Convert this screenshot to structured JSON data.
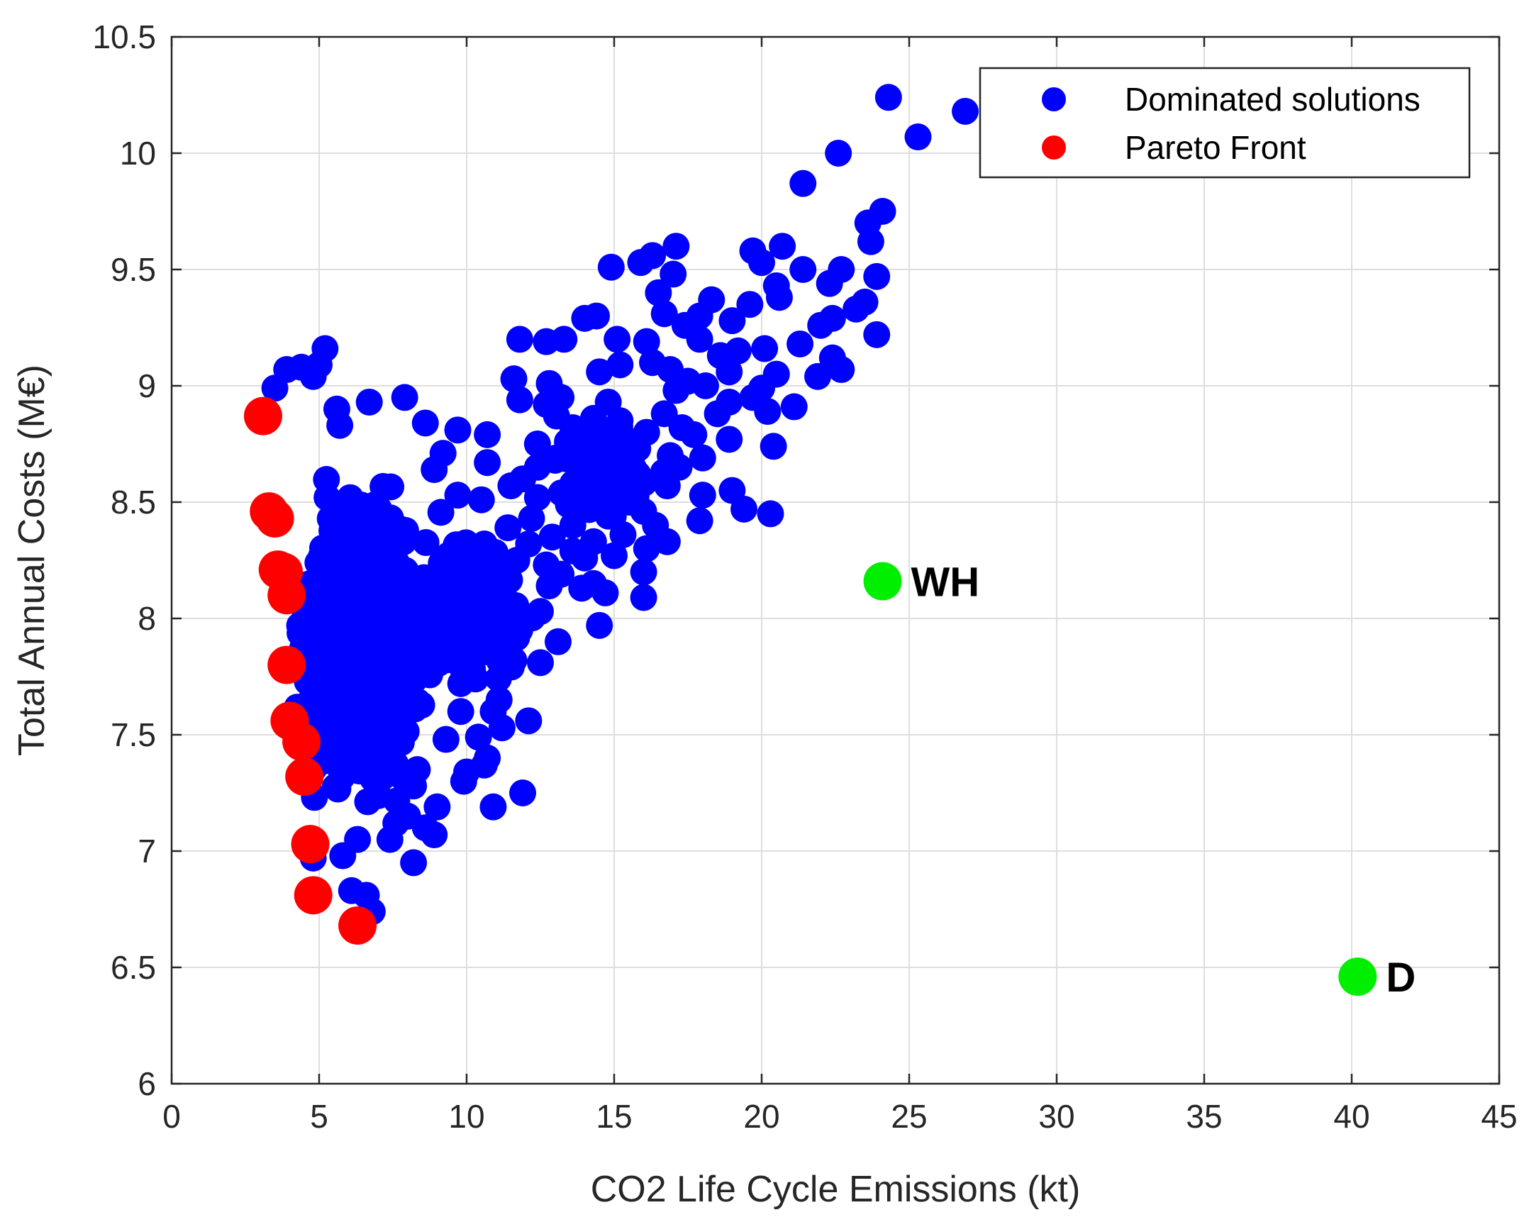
{
  "chart_data": {
    "type": "scatter",
    "xlabel": "CO2 Life Cycle Emissions (kt)",
    "ylabel": "Total Annual Costs (M€)",
    "xlim": [
      0,
      45
    ],
    "ylim": [
      6,
      10.5
    ],
    "xticks": [
      "0",
      "5",
      "10",
      "15",
      "20",
      "25",
      "30",
      "35",
      "40",
      "45"
    ],
    "yticks": [
      "6",
      "6.5",
      "7",
      "7.5",
      "8",
      "8.5",
      "9",
      "9.5",
      "10",
      "10.5"
    ],
    "grid": true,
    "legend_position": "top-right",
    "series": [
      {
        "name": "Dominated solutions",
        "color": "#0000ff",
        "points": [
          [
            24.3,
            10.24
          ],
          [
            26.9,
            10.18
          ],
          [
            25.3,
            10.07
          ],
          [
            22.6,
            10.0
          ],
          [
            21.4,
            9.87
          ],
          [
            24.1,
            9.75
          ],
          [
            23.6,
            9.7
          ],
          [
            23.7,
            9.62
          ],
          [
            17.1,
            9.6
          ],
          [
            20.7,
            9.6
          ],
          [
            19.7,
            9.58
          ],
          [
            16.3,
            9.56
          ],
          [
            15.9,
            9.53
          ],
          [
            20.0,
            9.53
          ],
          [
            14.9,
            9.51
          ],
          [
            21.4,
            9.5
          ],
          [
            22.7,
            9.5
          ],
          [
            17.0,
            9.48
          ],
          [
            23.9,
            9.47
          ],
          [
            22.3,
            9.44
          ],
          [
            20.5,
            9.43
          ],
          [
            16.5,
            9.4
          ],
          [
            20.6,
            9.38
          ],
          [
            18.3,
            9.37
          ],
          [
            23.5,
            9.36
          ],
          [
            19.6,
            9.35
          ],
          [
            23.2,
            9.33
          ],
          [
            16.7,
            9.31
          ],
          [
            14.4,
            9.3
          ],
          [
            17.9,
            9.3
          ],
          [
            14.0,
            9.29
          ],
          [
            22.4,
            9.29
          ],
          [
            19.0,
            9.28
          ],
          [
            17.4,
            9.26
          ],
          [
            22.0,
            9.26
          ],
          [
            23.9,
            9.22
          ],
          [
            11.8,
            9.2
          ],
          [
            13.3,
            9.2
          ],
          [
            15.1,
            9.2
          ],
          [
            17.9,
            9.2
          ],
          [
            12.7,
            9.19
          ],
          [
            16.1,
            9.19
          ],
          [
            21.3,
            9.18
          ],
          [
            5.2,
            9.16
          ],
          [
            20.1,
            9.16
          ],
          [
            19.2,
            9.15
          ],
          [
            18.6,
            9.13
          ],
          [
            22.4,
            9.12
          ],
          [
            16.3,
            9.1
          ],
          [
            5.0,
            9.09
          ],
          [
            15.2,
            9.09
          ],
          [
            4.4,
            9.08
          ],
          [
            3.9,
            9.07
          ],
          [
            16.9,
            9.07
          ],
          [
            22.7,
            9.07
          ],
          [
            14.5,
            9.06
          ],
          [
            18.9,
            9.06
          ],
          [
            20.5,
            9.05
          ],
          [
            21.9,
            9.04
          ],
          [
            4.8,
            9.04
          ],
          [
            11.6,
            9.03
          ],
          [
            17.5,
            9.02
          ],
          [
            12.8,
            9.01
          ],
          [
            18.1,
            9.0
          ],
          [
            3.5,
            8.99
          ],
          [
            20.0,
            8.99
          ],
          [
            17.1,
            8.98
          ],
          [
            13.2,
            8.95
          ],
          [
            19.7,
            8.95
          ],
          [
            7.9,
            8.95
          ],
          [
            11.8,
            8.94
          ],
          [
            6.7,
            8.93
          ],
          [
            14.8,
            8.93
          ],
          [
            18.9,
            8.93
          ],
          [
            12.7,
            8.92
          ],
          [
            21.1,
            8.91
          ],
          [
            5.6,
            8.9
          ],
          [
            20.2,
            8.89
          ],
          [
            18.5,
            8.88
          ],
          [
            16.7,
            8.88
          ],
          [
            14.3,
            8.86
          ],
          [
            15.2,
            8.85
          ],
          [
            8.6,
            8.84
          ],
          [
            5.7,
            8.83
          ],
          [
            13.6,
            8.82
          ],
          [
            17.3,
            8.82
          ],
          [
            9.7,
            8.81
          ],
          [
            16.1,
            8.8
          ],
          [
            10.7,
            8.79
          ],
          [
            17.7,
            8.79
          ],
          [
            18.9,
            8.77
          ],
          [
            14.9,
            8.77
          ],
          [
            12.4,
            8.75
          ],
          [
            20.4,
            8.74
          ],
          [
            15.8,
            8.73
          ],
          [
            13.9,
            8.72
          ],
          [
            9.2,
            8.71
          ],
          [
            16.9,
            8.7
          ],
          [
            18.0,
            8.69
          ],
          [
            13.0,
            8.68
          ],
          [
            10.7,
            8.67
          ],
          [
            15.3,
            8.66
          ],
          [
            12.4,
            8.65
          ],
          [
            17.2,
            8.65
          ],
          [
            8.9,
            8.64
          ],
          [
            14.4,
            8.63
          ],
          [
            15.8,
            8.62
          ],
          [
            11.9,
            8.6
          ],
          [
            13.6,
            8.58
          ],
          [
            16.8,
            8.57
          ],
          [
            11.5,
            8.57
          ],
          [
            19.0,
            8.55
          ],
          [
            18.0,
            8.53
          ],
          [
            9.7,
            8.53
          ],
          [
            12.4,
            8.52
          ],
          [
            10.5,
            8.51
          ],
          [
            14.3,
            8.5
          ],
          [
            15.5,
            8.5
          ],
          [
            19.4,
            8.47
          ],
          [
            16.0,
            8.46
          ],
          [
            20.3,
            8.45
          ],
          [
            14.8,
            8.44
          ],
          [
            12.2,
            8.43
          ],
          [
            17.9,
            8.42
          ],
          [
            16.4,
            8.4
          ],
          [
            13.6,
            8.4
          ],
          [
            11.4,
            8.39
          ],
          [
            15.3,
            8.36
          ],
          [
            12.9,
            8.35
          ],
          [
            16.8,
            8.33
          ],
          [
            14.3,
            8.33
          ],
          [
            10.6,
            8.32
          ],
          [
            12.1,
            8.32
          ],
          [
            16.1,
            8.3
          ],
          [
            13.6,
            8.29
          ],
          [
            15.0,
            8.27
          ],
          [
            14.0,
            8.26
          ],
          [
            11.7,
            8.25
          ],
          [
            12.7,
            8.23
          ],
          [
            16.0,
            8.2
          ],
          [
            13.2,
            8.19
          ],
          [
            10.4,
            8.18
          ],
          [
            14.3,
            8.15
          ],
          [
            11.0,
            8.15
          ],
          [
            12.8,
            8.14
          ],
          [
            13.9,
            8.13
          ],
          [
            14.7,
            8.11
          ],
          [
            10.4,
            8.1
          ],
          [
            16.0,
            8.09
          ],
          [
            11.4,
            8.07
          ],
          [
            12.5,
            8.03
          ],
          [
            9.9,
            8.02
          ],
          [
            14.5,
            7.97
          ],
          [
            11.8,
            7.95
          ],
          [
            13.1,
            7.9
          ],
          [
            10.5,
            7.88
          ],
          [
            11.4,
            7.85
          ],
          [
            11.6,
            7.82
          ],
          [
            12.5,
            7.81
          ],
          [
            10.2,
            7.78
          ],
          [
            10.3,
            7.74
          ],
          [
            9.8,
            7.72
          ],
          [
            11.1,
            7.65
          ],
          [
            10.9,
            7.6
          ],
          [
            9.8,
            7.6
          ],
          [
            12.1,
            7.56
          ],
          [
            11.2,
            7.53
          ],
          [
            10.4,
            7.49
          ],
          [
            9.3,
            7.48
          ],
          [
            10.7,
            7.4
          ],
          [
            10.6,
            7.37
          ],
          [
            10.0,
            7.34
          ],
          [
            9.9,
            7.3
          ],
          [
            11.9,
            7.25
          ],
          [
            8.2,
            7.28
          ],
          [
            10.9,
            7.19
          ],
          [
            9.0,
            7.19
          ],
          [
            8.0,
            7.15
          ],
          [
            8.6,
            7.1
          ],
          [
            8.9,
            7.07
          ],
          [
            7.4,
            7.05
          ],
          [
            8.2,
            6.95
          ],
          [
            5.8,
            6.98
          ],
          [
            4.8,
            6.97
          ],
          [
            6.1,
            6.83
          ],
          [
            6.6,
            6.81
          ],
          [
            6.8,
            6.74
          ],
          [
            6.3,
            7.05
          ],
          [
            7.6,
            7.12
          ]
        ],
        "clusters": [
          {
            "x": [
              3.8,
              9.2
            ],
            "y": [
              7.05,
              8.75
            ],
            "count": 540
          },
          {
            "x": [
              4.0,
              7.8
            ],
            "y": [
              7.1,
              8.5
            ],
            "count": 260
          },
          {
            "x": [
              4.2,
              6.8
            ],
            "y": [
              7.2,
              8.3
            ],
            "count": 160
          },
          {
            "x": [
              7.0,
              12.5
            ],
            "y": [
              7.6,
              8.5
            ],
            "count": 140
          },
          {
            "x": [
              12.0,
              17.5
            ],
            "y": [
              8.3,
              9.0
            ],
            "count": 60
          }
        ]
      },
      {
        "name": "Pareto Front",
        "color": "#ff0000",
        "points": [
          [
            3.1,
            8.87
          ],
          [
            3.3,
            8.46
          ],
          [
            3.5,
            8.43
          ],
          [
            3.6,
            8.21
          ],
          [
            3.8,
            8.2
          ],
          [
            3.9,
            8.1
          ],
          [
            3.9,
            7.8
          ],
          [
            4.0,
            7.56
          ],
          [
            4.4,
            7.47
          ],
          [
            4.5,
            7.32
          ],
          [
            4.7,
            7.03
          ],
          [
            4.8,
            6.81
          ],
          [
            6.3,
            6.68
          ]
        ]
      },
      {
        "color": "#00ee00",
        "points": [
          [
            24.1,
            8.16
          ],
          [
            40.2,
            6.46
          ]
        ],
        "labels": [
          "WH",
          "D"
        ]
      }
    ]
  }
}
